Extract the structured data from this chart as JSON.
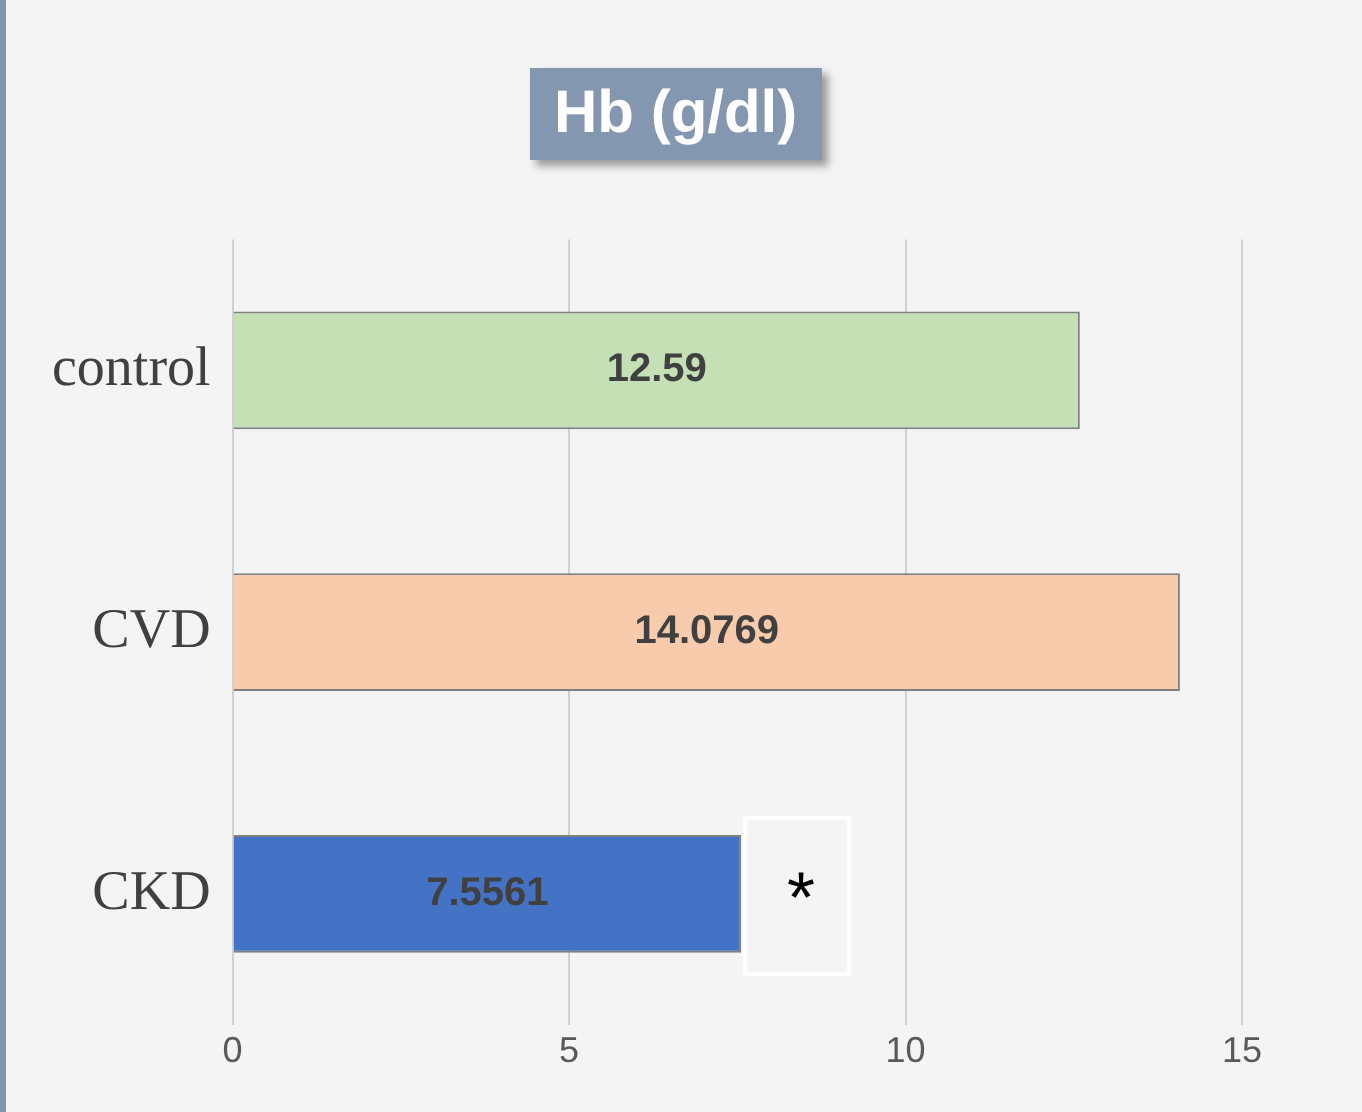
{
  "chart_data": {
    "type": "bar",
    "orientation": "horizontal",
    "title": "Hb (g/dl)",
    "categories": [
      "control",
      "CVD",
      "CKD"
    ],
    "values": [
      12.59,
      14.0769,
      7.5561
    ],
    "colors": [
      "#c5e0b4",
      "#f8cbad",
      "#4472c4"
    ],
    "xlim": [
      0,
      15
    ],
    "xticks": [
      0,
      5,
      10,
      15
    ],
    "grid": "x",
    "legend": false,
    "data_labels": true,
    "annotations": [
      {
        "text": "*",
        "x": 7.5561,
        "y": "CKD"
      }
    ]
  }
}
